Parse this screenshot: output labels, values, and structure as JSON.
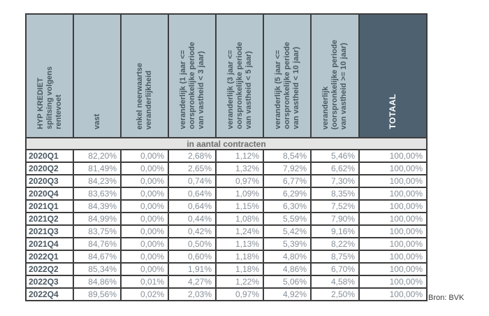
{
  "table": {
    "columns": [
      {
        "label": "HYP KREDIET\nsplitsing volgens\nrentevoet"
      },
      {
        "label": "vast"
      },
      {
        "label": "enkel neerwaartse\nveranderlijkheid"
      },
      {
        "label": "veranderlijk (1 jaar <=\noorspronkelijke periode\nvan vastheid < 3 jaar)"
      },
      {
        "label": "veranderlijk (3 jaar <=\noorspronkelijke periode\nvan vastheid < 5 jaar)"
      },
      {
        "label": "veranderlijk (5 jaar <=\noorspronkelijke periode\nvan vastheid < 10 jaar)"
      },
      {
        "label": "veranderlijk\n(oorspronkelijke periode\nvan vastheid >= 10 jaar)"
      },
      {
        "label": "TOTAAL"
      }
    ],
    "subheader": "in aantal contracten",
    "rows": [
      {
        "label": "2020Q1",
        "values": [
          "82,20%",
          "0,00%",
          "2,68%",
          "1,12%",
          "8,54%",
          "5,46%",
          "100,00%"
        ]
      },
      {
        "label": "2020Q2",
        "values": [
          "81,49%",
          "0,00%",
          "2,65%",
          "1,32%",
          "7,92%",
          "6,62%",
          "100,00%"
        ]
      },
      {
        "label": "2020Q3",
        "values": [
          "84,23%",
          "0,00%",
          "0,74%",
          "0,97%",
          "6,77%",
          "7,30%",
          "100,00%"
        ]
      },
      {
        "label": "2020Q4",
        "values": [
          "83,63%",
          "0,00%",
          "0,64%",
          "1,09%",
          "6,29%",
          "8,35%",
          "100,00%"
        ]
      },
      {
        "label": "2021Q1",
        "values": [
          "84,39%",
          "0,00%",
          "0,64%",
          "1,15%",
          "6,30%",
          "7,52%",
          "100,00%"
        ]
      },
      {
        "label": "2021Q2",
        "values": [
          "84,99%",
          "0,00%",
          "0,44%",
          "1,08%",
          "5,59%",
          "7,90%",
          "100,00%"
        ]
      },
      {
        "label": "2021Q3",
        "values": [
          "83,75%",
          "0,00%",
          "0,42%",
          "1,24%",
          "5,42%",
          "9,16%",
          "100,00%"
        ]
      },
      {
        "label": "2021Q4",
        "values": [
          "84,76%",
          "0,00%",
          "0,50%",
          "1,13%",
          "5,39%",
          "8,22%",
          "100,00%"
        ]
      },
      {
        "label": "2022Q1",
        "values": [
          "84,67%",
          "0,00%",
          "0,60%",
          "1,18%",
          "4,80%",
          "8,75%",
          "100,00%"
        ]
      },
      {
        "label": "2022Q2",
        "values": [
          "85,34%",
          "0,00%",
          "1,91%",
          "1,18%",
          "4,86%",
          "6,70%",
          "100,00%"
        ]
      },
      {
        "label": "2022Q3",
        "values": [
          "84,86%",
          "0,01%",
          "4,27%",
          "1,22%",
          "5,06%",
          "4,58%",
          "100,00%"
        ]
      },
      {
        "label": "2022Q4",
        "values": [
          "89,56%",
          "0,02%",
          "2,03%",
          "0,97%",
          "4,92%",
          "2,50%",
          "100,00%"
        ]
      }
    ]
  },
  "source_note": "Bron: BVK",
  "colors": {
    "header_bg": "#b6c6ce",
    "totaal_header_bg": "#4e6170",
    "header_text": "#4a5862",
    "totaal_header_text": "#ffffff",
    "subheader_bg": "#e4e4e4",
    "subheader_text": "#6f6f6f",
    "row_label_text": "#4a5862",
    "value_text": "#868f98",
    "border": "#3d3d3d"
  },
  "chart_data": {
    "type": "table",
    "title": "HYP KREDIET splitsing volgens rentevoet",
    "unit_note": "in aantal contracten",
    "source": "Bron: BVK",
    "columns": [
      "vast",
      "enkel neerwaartse veranderlijkheid",
      "veranderlijk (1 jaar <= oorspronkelijke periode van vastheid < 3 jaar)",
      "veranderlijk (3 jaar <= oorspronkelijke periode van vastheid < 5 jaar)",
      "veranderlijk (5 jaar <= oorspronkelijke periode van vastheid < 10 jaar)",
      "veranderlijk (oorspronkelijke periode van vastheid >= 10 jaar)",
      "TOTAAL"
    ],
    "rows": [
      {
        "period": "2020Q1",
        "values_pct": [
          82.2,
          0.0,
          2.68,
          1.12,
          8.54,
          5.46,
          100.0
        ]
      },
      {
        "period": "2020Q2",
        "values_pct": [
          81.49,
          0.0,
          2.65,
          1.32,
          7.92,
          6.62,
          100.0
        ]
      },
      {
        "period": "2020Q3",
        "values_pct": [
          84.23,
          0.0,
          0.74,
          0.97,
          6.77,
          7.3,
          100.0
        ]
      },
      {
        "period": "2020Q4",
        "values_pct": [
          83.63,
          0.0,
          0.64,
          1.09,
          6.29,
          8.35,
          100.0
        ]
      },
      {
        "period": "2021Q1",
        "values_pct": [
          84.39,
          0.0,
          0.64,
          1.15,
          6.3,
          7.52,
          100.0
        ]
      },
      {
        "period": "2021Q2",
        "values_pct": [
          84.99,
          0.0,
          0.44,
          1.08,
          5.59,
          7.9,
          100.0
        ]
      },
      {
        "period": "2021Q3",
        "values_pct": [
          83.75,
          0.0,
          0.42,
          1.24,
          5.42,
          9.16,
          100.0
        ]
      },
      {
        "period": "2021Q4",
        "values_pct": [
          84.76,
          0.0,
          0.5,
          1.13,
          5.39,
          8.22,
          100.0
        ]
      },
      {
        "period": "2022Q1",
        "values_pct": [
          84.67,
          0.0,
          0.6,
          1.18,
          4.8,
          8.75,
          100.0
        ]
      },
      {
        "period": "2022Q2",
        "values_pct": [
          85.34,
          0.0,
          1.91,
          1.18,
          4.86,
          6.7,
          100.0
        ]
      },
      {
        "period": "2022Q3",
        "values_pct": [
          84.86,
          0.01,
          4.27,
          1.22,
          5.06,
          4.58,
          100.0
        ]
      },
      {
        "period": "2022Q4",
        "values_pct": [
          89.56,
          0.02,
          2.03,
          0.97,
          4.92,
          2.5,
          100.0
        ]
      }
    ]
  }
}
